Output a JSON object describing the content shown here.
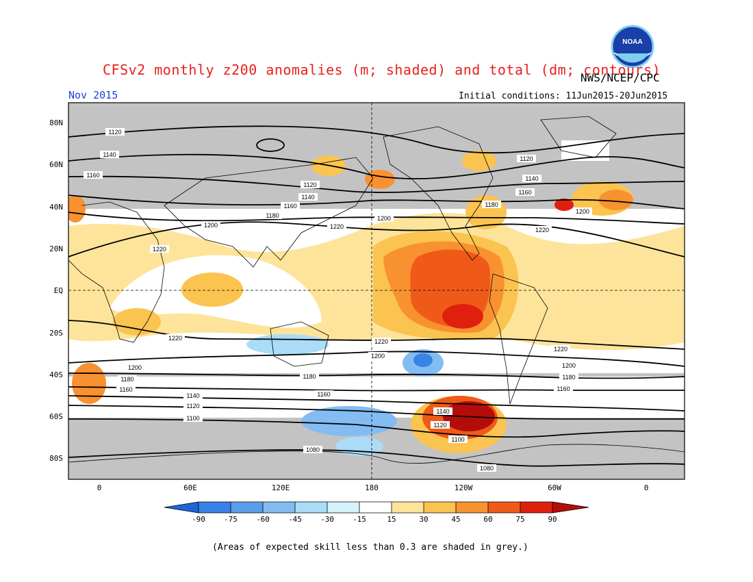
{
  "header": {
    "title": "CFSv2 monthly z200 anomalies (m; shaded) and total (dm; contours)",
    "agency": "NWS/NCEP/CPC",
    "month": "Nov 2015",
    "initial_conditions": "Initial conditions: 11Jun2015-20Jun2015"
  },
  "logo": {
    "text": "NOAA"
  },
  "axes": {
    "lat_labels": [
      "80N",
      "60N",
      "40N",
      "20N",
      "EQ",
      "20S",
      "40S",
      "60S",
      "80S"
    ],
    "lon_labels": [
      "0",
      "60E",
      "120E",
      "180",
      "120W",
      "60W",
      "0"
    ]
  },
  "contours": [
    {
      "label": "1120"
    },
    {
      "label": "1140"
    },
    {
      "label": "1160"
    },
    {
      "label": "1180"
    },
    {
      "label": "1200"
    },
    {
      "label": "1220"
    },
    {
      "label": "1100"
    },
    {
      "label": "1080"
    }
  ],
  "colorbar": {
    "ticks": [
      "-90",
      "-75",
      "-60",
      "-45",
      "-30",
      "-15",
      "15",
      "30",
      "45",
      "60",
      "75",
      "90"
    ],
    "colors": [
      "#1e64d8",
      "#3a82e8",
      "#5a9eea",
      "#82bcf2",
      "#aadcf8",
      "#d4f2fc",
      "#ffffff",
      "#fde49a",
      "#fbc350",
      "#f89230",
      "#f05a18",
      "#e0200e",
      "#b40c08"
    ]
  },
  "colors": {
    "skill_grey": "#c3c3c3",
    "title_red": "#e8201c",
    "month_blue": "#2040e0"
  },
  "footnote": "(Areas of expected skill less than 0.3 are shaded in grey.)"
}
